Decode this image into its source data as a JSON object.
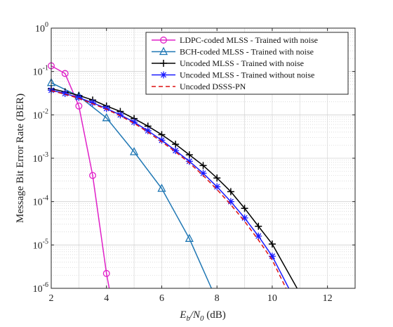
{
  "chart_data": {
    "type": "line",
    "title": "",
    "xlabel": {
      "main": "E",
      "sub1": "b",
      "mid": "/N",
      "sub2": "0",
      "unit": " (dB)"
    },
    "ylabel": "Message Bit Error Rate (BER)",
    "xlim": [
      2,
      13
    ],
    "ylim": [
      1e-06,
      1
    ],
    "yscale": "log",
    "grid": true,
    "legend_position": "top-right",
    "x_ticks": [
      "2",
      "4",
      "6",
      "8",
      "10",
      "12"
    ],
    "y_ticks": [
      {
        "base": "10",
        "exp": "0"
      },
      {
        "base": "10",
        "exp": "-1"
      },
      {
        "base": "10",
        "exp": "-2"
      },
      {
        "base": "10",
        "exp": "-3"
      },
      {
        "base": "10",
        "exp": "-4"
      },
      {
        "base": "10",
        "exp": "-5"
      },
      {
        "base": "10",
        "exp": "-6"
      }
    ],
    "series": [
      {
        "name": "LDPC-coded MLSS - Trained with noise",
        "color": "#e020c8",
        "marker": "circle",
        "dashed": false,
        "x": [
          2,
          2.5,
          3,
          3.5,
          4
        ],
        "y": [
          0.135,
          0.09,
          0.016,
          0.0004,
          2.2e-06
        ],
        "line_x": [
          2,
          2.5,
          3,
          3.5,
          4,
          4.1
        ],
        "line_y": [
          0.135,
          0.09,
          0.016,
          0.0004,
          2.2e-06,
          1e-06
        ]
      },
      {
        "name": "BCH-coded MLSS - Trained with noise",
        "color": "#1f77b4",
        "marker": "triangle",
        "dashed": false,
        "x": [
          2,
          3,
          4,
          5,
          6,
          7
        ],
        "y": [
          0.055,
          0.027,
          0.0085,
          0.0014,
          0.0002,
          1.4e-05
        ],
        "line_x": [
          2,
          3,
          4,
          5,
          6,
          7,
          7.8
        ],
        "line_y": [
          0.055,
          0.027,
          0.0085,
          0.0014,
          0.0002,
          1.4e-05,
          1e-06
        ]
      },
      {
        "name": "Uncoded MLSS - Trained with noise",
        "color": "#000000",
        "marker": "plus",
        "dashed": false,
        "x": [
          2,
          2.5,
          3,
          3.5,
          4,
          4.5,
          5,
          5.5,
          6,
          6.5,
          7,
          7.5,
          8,
          8.5,
          9,
          9.5,
          10
        ],
        "y": [
          0.04,
          0.034,
          0.028,
          0.022,
          0.016,
          0.012,
          0.0082,
          0.0055,
          0.0035,
          0.0021,
          0.0012,
          0.00068,
          0.00035,
          0.00017,
          7e-05,
          2.7e-05,
          1.05e-05
        ],
        "line_x": [
          2,
          2.5,
          3,
          3.5,
          4,
          4.5,
          5,
          5.5,
          6,
          6.5,
          7,
          7.5,
          8,
          8.5,
          9,
          9.5,
          10,
          10.9
        ],
        "line_y": [
          0.04,
          0.034,
          0.028,
          0.022,
          0.016,
          0.012,
          0.0082,
          0.0055,
          0.0035,
          0.0021,
          0.0012,
          0.00068,
          0.00035,
          0.00017,
          7e-05,
          2.7e-05,
          1.05e-05,
          1e-06
        ]
      },
      {
        "name": "Uncoded MLSS - Trained without noise",
        "color": "#1a1aff",
        "marker": "asterisk",
        "dashed": false,
        "x": [
          2,
          2.5,
          3,
          3.5,
          4,
          4.5,
          5,
          5.5,
          6,
          6.5,
          7,
          7.5,
          8,
          8.5,
          9,
          9.5,
          10
        ],
        "y": [
          0.037,
          0.031,
          0.025,
          0.019,
          0.014,
          0.01,
          0.0068,
          0.0043,
          0.0026,
          0.0015,
          0.00085,
          0.00045,
          0.00022,
          0.0001,
          4.2e-05,
          1.6e-05,
          5.5e-06
        ],
        "line_x": [
          2,
          2.5,
          3,
          3.5,
          4,
          4.5,
          5,
          5.5,
          6,
          6.5,
          7,
          7.5,
          8,
          8.5,
          9,
          9.5,
          10,
          10.6
        ],
        "line_y": [
          0.037,
          0.031,
          0.025,
          0.019,
          0.014,
          0.01,
          0.0068,
          0.0043,
          0.0026,
          0.0015,
          0.00085,
          0.00045,
          0.00022,
          0.0001,
          4.2e-05,
          1.6e-05,
          5.5e-06,
          1e-06
        ]
      },
      {
        "name": "Uncoded DSSS-PN",
        "color": "#dd1111",
        "marker": "none",
        "dashed": true,
        "x": [],
        "y": [],
        "line_x": [
          2,
          2.5,
          3,
          3.5,
          4,
          4.5,
          5,
          5.5,
          6,
          6.5,
          7,
          7.5,
          8,
          8.5,
          9,
          9.5,
          10,
          10.5
        ],
        "line_y": [
          0.036,
          0.03,
          0.024,
          0.018,
          0.0135,
          0.0095,
          0.0064,
          0.004,
          0.0024,
          0.0014,
          0.00078,
          0.0004,
          0.00019,
          8.5e-05,
          3.5e-05,
          1.3e-05,
          4.5e-06,
          1e-06
        ]
      }
    ]
  }
}
